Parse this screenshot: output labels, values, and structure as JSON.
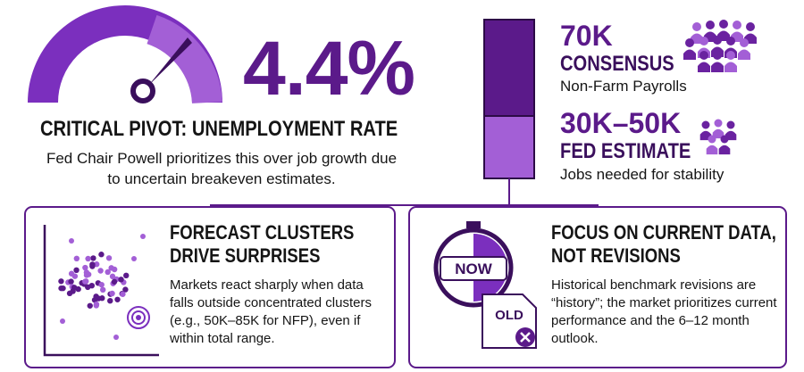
{
  "unemployment": {
    "value": "4.4%",
    "title": "CRITICAL PIVOT: UNEMPLOYMENT RATE",
    "text": "Fed Chair Powell prioritizes this over job growth due to uncertain breakeven estimates."
  },
  "consensus": {
    "value": "70K",
    "label": "CONSENSUS",
    "text": "Non-Farm Payrolls"
  },
  "fed_estimate": {
    "value": "30K–50K",
    "label": "FED ESTIMATE",
    "text": "Jobs needed for stability"
  },
  "cards": [
    {
      "title": "FORECAST CLUSTERS DRIVE SURPRISES",
      "text": "Markets react sharply when data falls outside concentrated clusters (e.g., 50K–85K for NFP), even if within total range."
    },
    {
      "title": "FOCUS ON CURRENT DATA, NOT REVISIONS",
      "text": "Historical benchmark revisions are “history”; the market prioritizes current performance and the 6–12 month outlook.",
      "icon_labels": [
        "NOW",
        "OLD"
      ]
    }
  ]
}
